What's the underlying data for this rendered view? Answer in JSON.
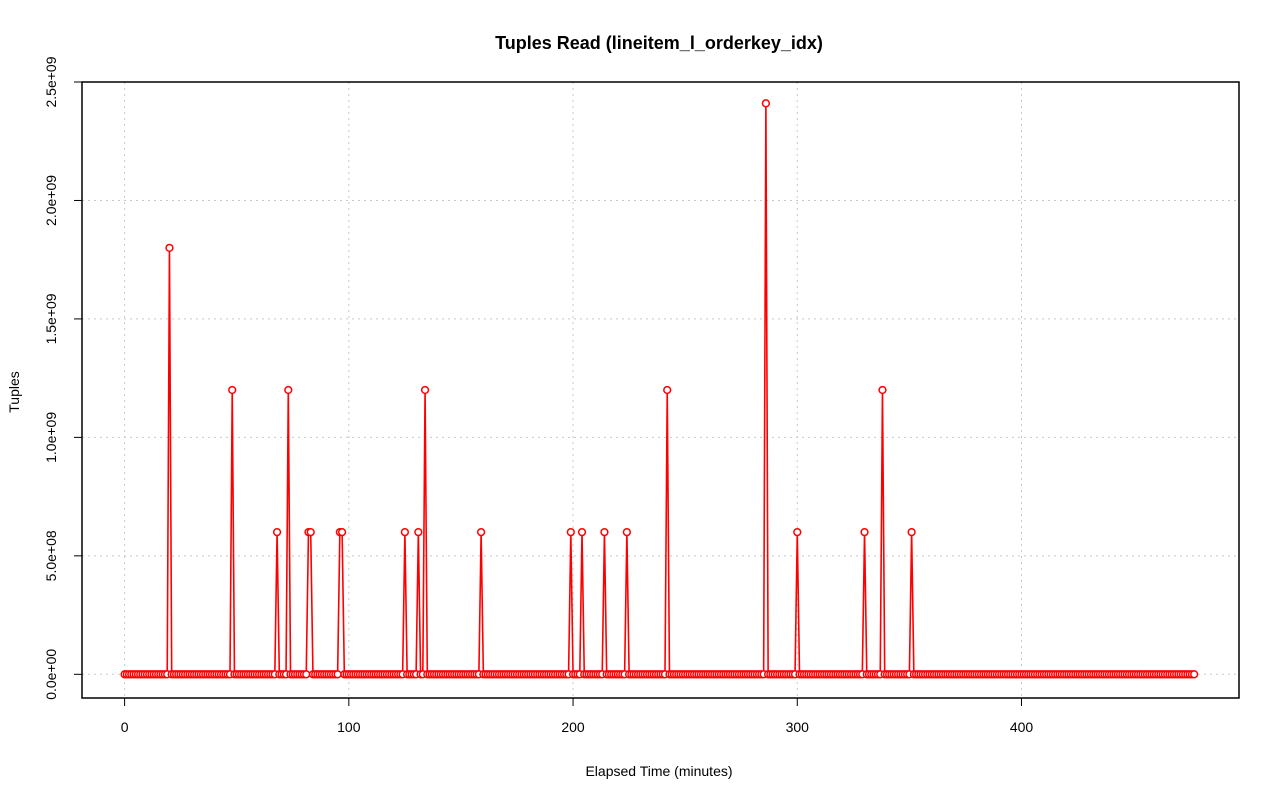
{
  "chart_data": {
    "type": "line",
    "title": "Tuples Read (lineitem_l_orderkey_idx)",
    "xlabel": "Elapsed Time (minutes)",
    "ylabel": "Tuples",
    "xlim": [
      -19,
      497
    ],
    "ylim": [
      -100000000.0,
      2500000000.0
    ],
    "x_ticks": [
      {
        "value": 0,
        "label": "0"
      },
      {
        "value": 100,
        "label": "100"
      },
      {
        "value": 200,
        "label": "200"
      },
      {
        "value": 300,
        "label": "300"
      },
      {
        "value": 400,
        "label": "400"
      }
    ],
    "y_ticks": [
      {
        "value": 0,
        "label": "0.0e+00"
      },
      {
        "value": 500000000,
        "label": "5.0e+08"
      },
      {
        "value": 1000000000,
        "label": "1.0e+09"
      },
      {
        "value": 1500000000,
        "label": "1.5e+09"
      },
      {
        "value": 2000000000,
        "label": "2.0e+09"
      },
      {
        "value": 2500000000,
        "label": "2.5e+09"
      }
    ],
    "grid": true,
    "color": "#ff0000",
    "x_range": [
      0,
      477
    ],
    "x_step": 1,
    "baseline_value": 0,
    "spikes": [
      {
        "x": 20,
        "y": 1800000000
      },
      {
        "x": 48,
        "y": 1200000000
      },
      {
        "x": 68,
        "y": 600000000
      },
      {
        "x": 73,
        "y": 1200000000
      },
      {
        "x": 82,
        "y": 600000000
      },
      {
        "x": 83,
        "y": 600000000
      },
      {
        "x": 96,
        "y": 600000000
      },
      {
        "x": 97,
        "y": 600000000
      },
      {
        "x": 125,
        "y": 600000000
      },
      {
        "x": 131,
        "y": 600000000
      },
      {
        "x": 134,
        "y": 1200000000
      },
      {
        "x": 159,
        "y": 600000000
      },
      {
        "x": 199,
        "y": 600000000
      },
      {
        "x": 204,
        "y": 600000000
      },
      {
        "x": 214,
        "y": 600000000
      },
      {
        "x": 224,
        "y": 600000000
      },
      {
        "x": 242,
        "y": 1200000000
      },
      {
        "x": 286,
        "y": 2410000000
      },
      {
        "x": 300,
        "y": 600000000
      },
      {
        "x": 330,
        "y": 600000000
      },
      {
        "x": 338,
        "y": 1200000000
      },
      {
        "x": 351,
        "y": 600000000
      }
    ]
  }
}
